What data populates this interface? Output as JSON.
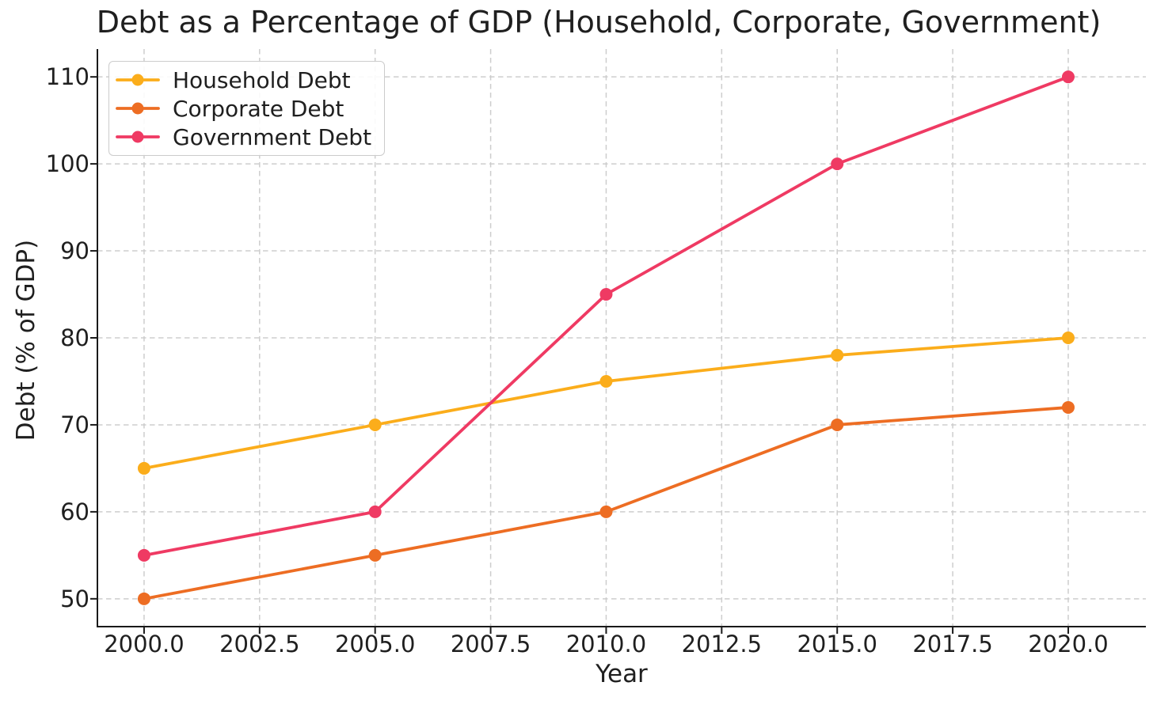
{
  "chart_data": {
    "type": "line",
    "title": "Debt as a Percentage of GDP (Household, Corporate, Government)",
    "xlabel": "Year",
    "ylabel": "Debt (% of GDP)",
    "x": [
      2000,
      2005,
      2010,
      2015,
      2020
    ],
    "series": [
      {
        "name": "Household Debt",
        "color": "#FBAD1B",
        "values": [
          65,
          70,
          75,
          78,
          80
        ]
      },
      {
        "name": "Corporate Debt",
        "color": "#ED6D23",
        "values": [
          50,
          55,
          60,
          70,
          72
        ]
      },
      {
        "name": "Government Debt",
        "color": "#EF3A63",
        "values": [
          55,
          60,
          85,
          100,
          110
        ]
      }
    ],
    "xticks": [
      2000,
      2002.5,
      2005,
      2007.5,
      2010,
      2012.5,
      2015,
      2017.5,
      2020
    ],
    "xtick_labels": [
      "2000.0",
      "2002.5",
      "2005.0",
      "2007.5",
      "2010.0",
      "2012.5",
      "2015.0",
      "2017.5",
      "2020.0"
    ],
    "yticks": [
      50,
      60,
      70,
      80,
      90,
      100,
      110
    ],
    "ytick_labels": [
      "50",
      "60",
      "70",
      "80",
      "90",
      "100",
      "110"
    ],
    "xlim": [
      1998.99,
      2021.68
    ],
    "ylim": [
      46.8,
      113.2
    ],
    "grid": true,
    "grid_style": "dashed",
    "legend_position": "upper left",
    "marker": "o",
    "colors": {
      "grid": "#cdcdcd",
      "spine": "#1a1a1a",
      "text": "#1f1f1f",
      "background": "#ffffff"
    }
  }
}
